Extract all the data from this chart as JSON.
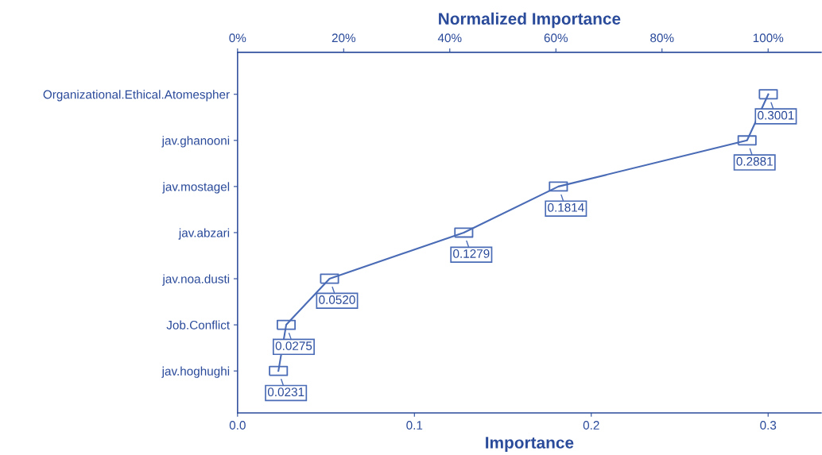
{
  "chart_data": {
    "type": "line",
    "orientation": "horizontal",
    "xlabel": "Importance",
    "x2label": "Normalized Importance",
    "categories": [
      "Organizational.Ethical.Atomespher",
      "jav.ghanooni",
      "jav.mostagel",
      "jav.abzari",
      "jav.noa.dusti",
      "Job.Conflict",
      "jav.hoghughi"
    ],
    "series": [
      {
        "color": "#4a6bb5",
        "values": [
          0.3001,
          0.2881,
          0.1814,
          0.1279,
          0.052,
          0.0275,
          0.0231
        ]
      }
    ],
    "value_labels": [
      "0.3001",
      "0.2881",
      "0.1814",
      "0.1279",
      "0.0520",
      "0.0275",
      "0.0231"
    ],
    "xlim": [
      0,
      0.33
    ],
    "xticks": [
      {
        "value": 0,
        "label": "0.0"
      },
      0.1,
      0.2,
      0.3
    ],
    "x2lim": [
      0,
      110
    ],
    "x2ticks": [
      {
        "value": 0,
        "label": "0%"
      },
      {
        "value": 20,
        "label": "20%"
      },
      {
        "value": 40,
        "label": "40%"
      },
      {
        "value": 60,
        "label": "60%"
      },
      {
        "value": 80,
        "label": "80%"
      },
      {
        "value": 100,
        "label": "100%"
      }
    ],
    "marker": "square",
    "line_style": "solid",
    "grid": false,
    "legend": false
  }
}
